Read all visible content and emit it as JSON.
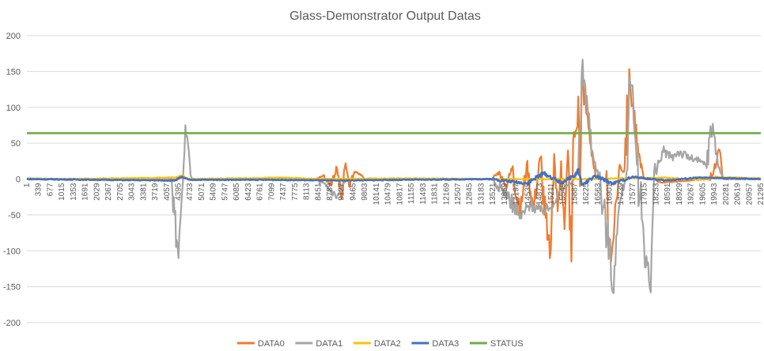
{
  "chart_data": {
    "type": "line",
    "title": "Glass-Demonstrator Output Datas",
    "xlabel": "",
    "ylabel": "",
    "ylim": [
      -200,
      200
    ],
    "yticks": [
      200,
      150,
      100,
      50,
      0,
      -50,
      -100,
      -150,
      -200
    ],
    "xlim": [
      1,
      21295
    ],
    "xticks": [
      1,
      339,
      677,
      1015,
      1353,
      1691,
      2029,
      2367,
      2705,
      3043,
      3381,
      3719,
      4057,
      4395,
      4733,
      5071,
      5409,
      5747,
      6085,
      6423,
      6761,
      7099,
      7437,
      7775,
      8113,
      8451,
      8789,
      9127,
      9465,
      9803,
      10141,
      10479,
      10817,
      11155,
      11493,
      11831,
      12169,
      12507,
      12845,
      13183,
      13521,
      13859,
      14197,
      14535,
      14873,
      15211,
      15549,
      15887,
      16225,
      16563,
      16901,
      17239,
      17577,
      17915,
      18253,
      18591,
      18929,
      19267,
      19605,
      19943,
      20281,
      20619,
      20957,
      21295
    ],
    "grid": "horizontal",
    "legend": "bottom",
    "series": [
      {
        "name": "DATA0",
        "color": "#ED7D31",
        "points": [
          [
            1,
            0
          ],
          [
            3500,
            0
          ],
          [
            4300,
            -1
          ],
          [
            4500,
            2
          ],
          [
            4700,
            0
          ],
          [
            8400,
            0
          ],
          [
            8600,
            5
          ],
          [
            8800,
            -8
          ],
          [
            9000,
            15
          ],
          [
            9130,
            -28
          ],
          [
            9250,
            22
          ],
          [
            9350,
            -10
          ],
          [
            9500,
            10
          ],
          [
            9700,
            6
          ],
          [
            9800,
            0
          ],
          [
            13500,
            0
          ],
          [
            13700,
            10
          ],
          [
            13900,
            -10
          ],
          [
            14100,
            18
          ],
          [
            14300,
            -50
          ],
          [
            14500,
            20
          ],
          [
            14700,
            -40
          ],
          [
            14900,
            30
          ],
          [
            15100,
            -85
          ],
          [
            15200,
            -100
          ],
          [
            15300,
            35
          ],
          [
            15400,
            -45
          ],
          [
            15500,
            25
          ],
          [
            15600,
            -70
          ],
          [
            15700,
            40
          ],
          [
            15800,
            -115
          ],
          [
            15850,
            55
          ],
          [
            15950,
            70
          ],
          [
            16000,
            115
          ],
          [
            16050,
            -10
          ],
          [
            16100,
            150
          ],
          [
            16250,
            90
          ],
          [
            16500,
            0
          ],
          [
            16800,
            0
          ],
          [
            16950,
            -115
          ],
          [
            17050,
            -60
          ],
          [
            17200,
            20
          ],
          [
            17300,
            10
          ],
          [
            17500,
            135
          ],
          [
            17700,
            50
          ],
          [
            17900,
            0
          ],
          [
            18200,
            0
          ],
          [
            18400,
            -5
          ],
          [
            19800,
            0
          ],
          [
            20000,
            20
          ],
          [
            20100,
            40
          ],
          [
            20200,
            0
          ],
          [
            21295,
            0
          ]
        ]
      },
      {
        "name": "DATA1",
        "color": "#A5A5A5",
        "points": [
          [
            1,
            0
          ],
          [
            4200,
            0
          ],
          [
            4350,
            -85
          ],
          [
            4400,
            -110
          ],
          [
            4450,
            -60
          ],
          [
            4500,
            -20
          ],
          [
            4550,
            20
          ],
          [
            4600,
            75
          ],
          [
            4650,
            60
          ],
          [
            4750,
            5
          ],
          [
            4800,
            0
          ],
          [
            8400,
            0
          ],
          [
            8800,
            -15
          ],
          [
            9000,
            -25
          ],
          [
            9200,
            -5
          ],
          [
            9400,
            0
          ],
          [
            13500,
            0
          ],
          [
            14000,
            -25
          ],
          [
            14300,
            -55
          ],
          [
            14600,
            -35
          ],
          [
            14900,
            -45
          ],
          [
            15200,
            -40
          ],
          [
            15500,
            -15
          ],
          [
            15800,
            -5
          ],
          [
            16000,
            10
          ],
          [
            16100,
            150
          ],
          [
            16200,
            130
          ],
          [
            16400,
            40
          ],
          [
            16600,
            0
          ],
          [
            16900,
            -100
          ],
          [
            17000,
            -158
          ],
          [
            17100,
            -80
          ],
          [
            17200,
            -35
          ],
          [
            17400,
            10
          ],
          [
            17500,
            135
          ],
          [
            17600,
            100
          ],
          [
            17700,
            20
          ],
          [
            18000,
            -120
          ],
          [
            18100,
            -158
          ],
          [
            18200,
            10
          ],
          [
            18500,
            38
          ],
          [
            18700,
            30
          ],
          [
            18900,
            38
          ],
          [
            19200,
            30
          ],
          [
            19500,
            25
          ],
          [
            19700,
            20
          ],
          [
            19900,
            77
          ],
          [
            20050,
            20
          ],
          [
            20200,
            0
          ],
          [
            21295,
            0
          ]
        ]
      },
      {
        "name": "DATA2",
        "color": "#FFC000",
        "points": [
          [
            1,
            1
          ],
          [
            1000,
            0
          ],
          [
            2500,
            1
          ],
          [
            4300,
            2
          ],
          [
            4500,
            5
          ],
          [
            4700,
            0
          ],
          [
            7400,
            2
          ],
          [
            8500,
            0
          ],
          [
            11000,
            1
          ],
          [
            13500,
            0
          ],
          [
            16000,
            0
          ],
          [
            18500,
            2
          ],
          [
            19500,
            -1
          ],
          [
            20000,
            3
          ],
          [
            21295,
            1
          ]
        ]
      },
      {
        "name": "DATA3",
        "color": "#4472C4",
        "points": [
          [
            1,
            0
          ],
          [
            2000,
            -1
          ],
          [
            4300,
            -2
          ],
          [
            4500,
            3
          ],
          [
            4700,
            -1
          ],
          [
            7000,
            -1
          ],
          [
            9000,
            -2
          ],
          [
            11000,
            -1
          ],
          [
            13500,
            0
          ],
          [
            14500,
            -6
          ],
          [
            15000,
            8
          ],
          [
            15500,
            -5
          ],
          [
            15900,
            5
          ],
          [
            16000,
            14
          ],
          [
            16100,
            -8
          ],
          [
            16500,
            4
          ],
          [
            17000,
            -6
          ],
          [
            17600,
            3
          ],
          [
            18500,
            -2
          ],
          [
            19500,
            2
          ],
          [
            21295,
            0
          ]
        ]
      },
      {
        "name": "STATUS",
        "color": "#70AD47",
        "points": [
          [
            1,
            64
          ],
          [
            21295,
            64
          ]
        ]
      }
    ]
  }
}
